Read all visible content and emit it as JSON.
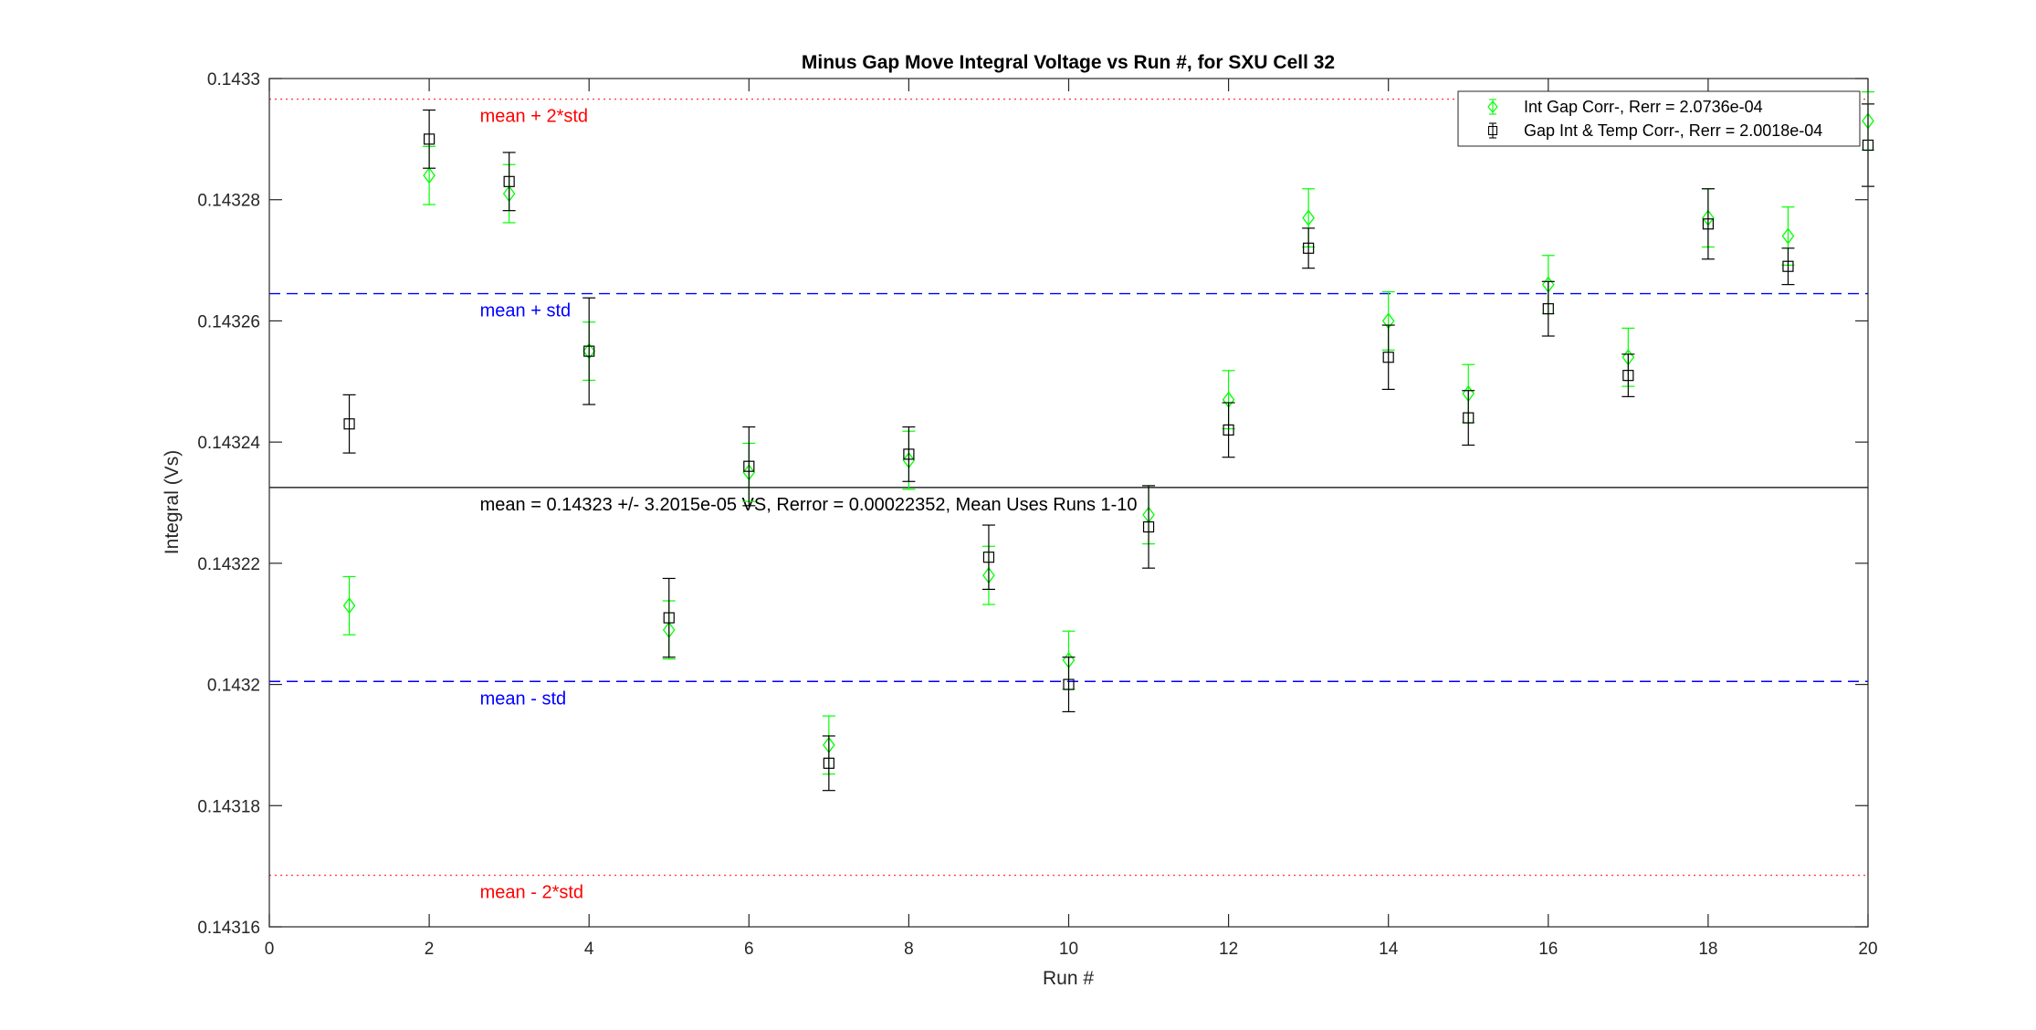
{
  "chart_data": {
    "type": "scatter",
    "title": "Minus Gap Move Integral Voltage vs Run #, for SXU Cell 32",
    "xlabel": "Run #",
    "ylabel": "Integral (Vs)",
    "xlim": [
      0,
      20
    ],
    "ylim": [
      0.14316,
      0.1433
    ],
    "x_ticks": [
      0,
      2,
      4,
      6,
      8,
      10,
      12,
      14,
      16,
      18,
      20
    ],
    "x_tick_labels": [
      "0",
      "2",
      "4",
      "6",
      "8",
      "10",
      "12",
      "14",
      "16",
      "18",
      "20"
    ],
    "y_ticks": [
      0.14316,
      0.14318,
      0.1432,
      0.14322,
      0.14324,
      0.14326,
      0.14328,
      0.1433
    ],
    "y_tick_labels": [
      "0.14316",
      "0.14318",
      "0.1432",
      "0.14322",
      "0.14324",
      "0.14326",
      "0.14328",
      "0.1433"
    ],
    "grid": false,
    "legend_position": "top-right",
    "series": [
      {
        "name": "Int Gap Corr-, Rerr = 2.0736e-04",
        "marker": "diamond",
        "color": "#00ff00",
        "x": [
          1,
          2,
          3,
          4,
          5,
          6,
          7,
          8,
          9,
          10,
          11,
          12,
          13,
          14,
          15,
          16,
          17,
          18,
          19,
          20
        ],
        "y": [
          0.143213,
          0.143284,
          0.143281,
          0.143255,
          0.143209,
          0.143235,
          0.14319,
          0.143237,
          0.143218,
          0.143204,
          0.143228,
          0.143247,
          0.143277,
          0.14326,
          0.143248,
          0.143266,
          0.143254,
          0.143277,
          0.143274,
          0.143293
        ],
        "err": [
          4.8e-06,
          4.8e-06,
          4.8e-06,
          4.8e-06,
          4.8e-06,
          4.8e-06,
          4.8e-06,
          4.8e-06,
          4.8e-06,
          4.8e-06,
          4.8e-06,
          4.8e-06,
          4.8e-06,
          4.8e-06,
          4.8e-06,
          4.8e-06,
          4.8e-06,
          4.8e-06,
          4.8e-06,
          4.8e-06
        ]
      },
      {
        "name": "Gap Int & Temp Corr-, Rerr = 2.0018e-04",
        "marker": "square",
        "color": "#000000",
        "x": [
          1,
          2,
          3,
          4,
          5,
          6,
          7,
          8,
          9,
          10,
          11,
          12,
          13,
          14,
          15,
          16,
          17,
          18,
          19,
          20
        ],
        "y": [
          0.143243,
          0.14329,
          0.143283,
          0.143255,
          0.143211,
          0.143236,
          0.143187,
          0.143238,
          0.143221,
          0.1432,
          0.143226,
          0.143242,
          0.143272,
          0.143254,
          0.143244,
          0.143262,
          0.143251,
          0.143276,
          0.143269,
          0.143289
        ],
        "err": [
          4.8e-06,
          4.8e-06,
          4.8e-06,
          8.8e-06,
          6.5e-06,
          6.5e-06,
          4.5e-06,
          4.5e-06,
          5.3e-06,
          4.5e-06,
          6.8e-06,
          4.5e-06,
          3.3e-06,
          5.3e-06,
          4.5e-06,
          4.5e-06,
          3.5e-06,
          5.8e-06,
          3e-06,
          6.8e-06
        ]
      }
    ],
    "reference_lines": [
      {
        "label": "mean + 2*std",
        "y": 0.1432966,
        "style": "dotted",
        "color": "#ff0000"
      },
      {
        "label": "mean + std",
        "y": 0.1432645,
        "style": "dashed",
        "color": "#0000ff"
      },
      {
        "label": "mean = 0.14323 +/- 3.2015e-05 VS, Rerror = 0.00022352, Mean Uses Runs 1-10",
        "y": 0.1432325,
        "style": "solid",
        "color": "#000000"
      },
      {
        "label": "mean - std",
        "y": 0.1432005,
        "style": "dashed",
        "color": "#0000ff"
      },
      {
        "label": "mean - 2*std",
        "y": 0.1431685,
        "style": "dotted",
        "color": "#ff0000"
      }
    ]
  }
}
